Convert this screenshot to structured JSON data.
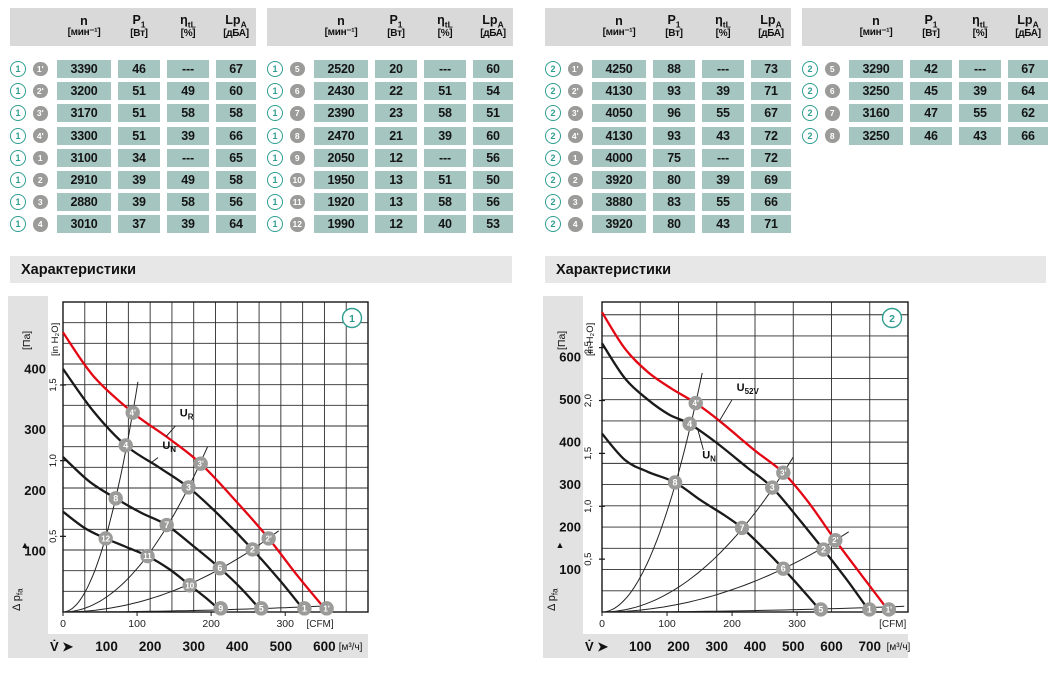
{
  "colors": {
    "cell_bg": "#a5c6c0",
    "header_band": "#d9d9d9",
    "section_band": "#e7e7e7",
    "chart_band": "#e2e2e2",
    "badge_gray": "#9b9b9a",
    "ref_teal": "#2f9e90",
    "curve_red": "#e30613",
    "curve_black": "#1a1a1a",
    "grid": "#2e2b2b"
  },
  "table_header": {
    "cols": [
      {
        "base": "n",
        "sub": "",
        "unit": "[мин⁻¹]"
      },
      {
        "base": "P",
        "sub": "1",
        "unit": "[Вт]"
      },
      {
        "base": "η",
        "sub": "tL",
        "unit": "[%]"
      },
      {
        "base": "Lp",
        "sub": "A",
        "unit": "[дБА]"
      }
    ]
  },
  "tables": [
    {
      "rows": [
        {
          "ref": "1",
          "pt": "1'",
          "values": [
            "3390",
            "46",
            "---",
            "67"
          ]
        },
        {
          "ref": "1",
          "pt": "2'",
          "values": [
            "3200",
            "51",
            "49",
            "60"
          ]
        },
        {
          "ref": "1",
          "pt": "3'",
          "values": [
            "3170",
            "51",
            "58",
            "58"
          ]
        },
        {
          "ref": "1",
          "pt": "4'",
          "values": [
            "3300",
            "51",
            "39",
            "66"
          ]
        },
        {
          "ref": "1",
          "pt": "1",
          "values": [
            "3100",
            "34",
            "---",
            "65"
          ]
        },
        {
          "ref": "1",
          "pt": "2",
          "values": [
            "2910",
            "39",
            "49",
            "58"
          ]
        },
        {
          "ref": "1",
          "pt": "3",
          "values": [
            "2880",
            "39",
            "58",
            "56"
          ]
        },
        {
          "ref": "1",
          "pt": "4",
          "values": [
            "3010",
            "37",
            "39",
            "64"
          ]
        }
      ]
    },
    {
      "rows": [
        {
          "ref": "1",
          "pt": "5",
          "values": [
            "2520",
            "20",
            "---",
            "60"
          ]
        },
        {
          "ref": "1",
          "pt": "6",
          "values": [
            "2430",
            "22",
            "51",
            "54"
          ]
        },
        {
          "ref": "1",
          "pt": "7",
          "values": [
            "2390",
            "23",
            "58",
            "51"
          ]
        },
        {
          "ref": "1",
          "pt": "8",
          "values": [
            "2470",
            "21",
            "39",
            "60"
          ]
        },
        {
          "ref": "1",
          "pt": "9",
          "values": [
            "2050",
            "12",
            "---",
            "56"
          ]
        },
        {
          "ref": "1",
          "pt": "10",
          "values": [
            "1950",
            "13",
            "51",
            "50"
          ]
        },
        {
          "ref": "1",
          "pt": "11",
          "values": [
            "1920",
            "13",
            "58",
            "56"
          ]
        },
        {
          "ref": "1",
          "pt": "12",
          "values": [
            "1990",
            "12",
            "40",
            "53"
          ]
        }
      ]
    },
    {
      "rows": [
        {
          "ref": "2",
          "pt": "1'",
          "values": [
            "4250",
            "88",
            "---",
            "73"
          ]
        },
        {
          "ref": "2",
          "pt": "2'",
          "values": [
            "4130",
            "93",
            "39",
            "71"
          ]
        },
        {
          "ref": "2",
          "pt": "3'",
          "values": [
            "4050",
            "96",
            "55",
            "67"
          ]
        },
        {
          "ref": "2",
          "pt": "4'",
          "values": [
            "4130",
            "93",
            "43",
            "72"
          ]
        },
        {
          "ref": "2",
          "pt": "1",
          "values": [
            "4000",
            "75",
            "---",
            "72"
          ]
        },
        {
          "ref": "2",
          "pt": "2",
          "values": [
            "3920",
            "80",
            "39",
            "69"
          ]
        },
        {
          "ref": "2",
          "pt": "3",
          "values": [
            "3880",
            "83",
            "55",
            "66"
          ]
        },
        {
          "ref": "2",
          "pt": "4",
          "values": [
            "3920",
            "80",
            "43",
            "71"
          ]
        }
      ]
    },
    {
      "rows": [
        {
          "ref": "2",
          "pt": "5",
          "values": [
            "3290",
            "42",
            "---",
            "67"
          ]
        },
        {
          "ref": "2",
          "pt": "6",
          "values": [
            "3250",
            "45",
            "39",
            "64"
          ]
        },
        {
          "ref": "2",
          "pt": "7",
          "values": [
            "3160",
            "47",
            "55",
            "62"
          ]
        },
        {
          "ref": "2",
          "pt": "8",
          "values": [
            "3250",
            "46",
            "43",
            "66"
          ]
        }
      ]
    }
  ],
  "section_headers": [
    "Характеристики",
    "Характеристики"
  ],
  "chart_data": [
    {
      "type": "line",
      "badge": "1",
      "xlabel": {
        "base": "V̇",
        "arrow": "➤"
      },
      "ylabel": {
        "base": "Δ p",
        "sub": "fa",
        "arrow": "▲"
      },
      "x_unit_primary": "[м³/ч]",
      "x_unit_secondary": "[CFM]",
      "y_unit_primary": "[Па]",
      "y_unit_secondary": "[in H₂O]",
      "xlim": [
        0,
        700
      ],
      "ylim": [
        0,
        510
      ],
      "xgrid": 50,
      "ygrid": 34,
      "m3h_ticks": [
        100,
        200,
        300,
        400,
        500,
        600
      ],
      "cfm_ticks": [
        {
          "v": 0,
          "label": "0"
        },
        {
          "v": 170,
          "label": "100"
        },
        {
          "v": 340,
          "label": "200"
        },
        {
          "v": 510,
          "label": "300"
        }
      ],
      "cfm_unit_x": 590,
      "m3h_unit_x": 660,
      "pa_ticks": [
        100,
        200,
        300,
        400
      ],
      "inh2o_ticks": [
        {
          "v": 124.5,
          "label": "0,5"
        },
        {
          "v": 249,
          "label": "1,0"
        },
        {
          "v": 373.5,
          "label": "1,5"
        }
      ],
      "curves": [
        {
          "name": "UR",
          "label": {
            "base": "U",
            "sub": "R"
          },
          "color": "red",
          "label_pos": [
            268,
            322
          ],
          "leader": [
            [
              258,
              306
            ],
            [
              237,
              289
            ]
          ],
          "points": [
            [
              0,
              460
            ],
            [
              70,
              388
            ],
            [
              160,
              328
            ],
            [
              240,
              287
            ],
            [
              316,
              244
            ],
            [
              400,
              180
            ],
            [
              472,
              121
            ],
            [
              540,
              58
            ],
            [
              605,
              2
            ]
          ]
        },
        {
          "name": "UN",
          "label": {
            "base": "U",
            "sub": "N"
          },
          "color": "black",
          "label_pos": [
            228,
            268
          ],
          "leader": [
            [
              218,
              254
            ],
            [
              201,
              245
            ]
          ],
          "points": [
            [
              0,
              400
            ],
            [
              70,
              330
            ],
            [
              144,
              274
            ],
            [
              220,
              238
            ],
            [
              288,
              205
            ],
            [
              360,
              158
            ],
            [
              435,
              103
            ],
            [
              500,
              50
            ],
            [
              554,
              2
            ]
          ]
        },
        {
          "name": "speed3",
          "color": "black",
          "points": [
            [
              0,
              255
            ],
            [
              60,
              215
            ],
            [
              121,
              187
            ],
            [
              180,
              163
            ],
            [
              238,
              143
            ],
            [
              300,
              108
            ],
            [
              360,
              72
            ],
            [
              410,
              38
            ],
            [
              455,
              2
            ]
          ]
        },
        {
          "name": "speed4",
          "color": "black",
          "points": [
            [
              0,
              165
            ],
            [
              50,
              138
            ],
            [
              98,
              121
            ],
            [
              145,
              107
            ],
            [
              194,
              92
            ],
            [
              245,
              70
            ],
            [
              291,
              44
            ],
            [
              330,
              22
            ],
            [
              362,
              2
            ]
          ]
        }
      ],
      "system_curves": [
        {
          "k": 0.0128,
          "x_end": 172
        },
        {
          "k": 0.00247,
          "x_end": 332
        },
        {
          "k": 0.000545,
          "x_end": 495
        },
        {
          "k": 2.75e-05,
          "x_end": 618
        }
      ],
      "markers": [
        {
          "label": "4'",
          "x": 160,
          "y": 328
        },
        {
          "label": "3'",
          "x": 316,
          "y": 244
        },
        {
          "label": "2'",
          "x": 472,
          "y": 121
        },
        {
          "label": "1'",
          "x": 605,
          "y": 6
        },
        {
          "label": "4",
          "x": 144,
          "y": 274
        },
        {
          "label": "3",
          "x": 288,
          "y": 205
        },
        {
          "label": "2",
          "x": 435,
          "y": 103
        },
        {
          "label": "1",
          "x": 554,
          "y": 6
        },
        {
          "label": "8",
          "x": 121,
          "y": 187
        },
        {
          "label": "7",
          "x": 238,
          "y": 143
        },
        {
          "label": "6",
          "x": 360,
          "y": 72
        },
        {
          "label": "5",
          "x": 455,
          "y": 6
        },
        {
          "label": "12",
          "x": 98,
          "y": 121
        },
        {
          "label": "11",
          "x": 194,
          "y": 92
        },
        {
          "label": "10",
          "x": 291,
          "y": 44
        },
        {
          "label": "9",
          "x": 362,
          "y": 6
        }
      ]
    },
    {
      "type": "line",
      "badge": "2",
      "xlabel": {
        "base": "V̇",
        "arrow": "➤"
      },
      "ylabel": {
        "base": "Δ p",
        "sub": "fa",
        "arrow": "▲"
      },
      "x_unit_primary": "[м³/ч]",
      "x_unit_secondary": "[CFM]",
      "y_unit_primary": "[Па]",
      "y_unit_secondary": "[in H₂O]",
      "xlim": [
        0,
        800
      ],
      "ylim": [
        0,
        730
      ],
      "xgrid": 100,
      "ygrid": 50,
      "m3h_ticks": [
        100,
        200,
        300,
        400,
        500,
        600,
        700
      ],
      "cfm_ticks": [
        {
          "v": 0,
          "label": "0"
        },
        {
          "v": 170,
          "label": "100"
        },
        {
          "v": 340,
          "label": "200"
        },
        {
          "v": 510,
          "label": "300"
        }
      ],
      "cfm_unit_x": 760,
      "m3h_unit_x": 775,
      "pa_ticks": [
        100,
        200,
        300,
        400,
        500,
        600
      ],
      "inh2o_ticks": [
        {
          "v": 124.5,
          "label": "0,5"
        },
        {
          "v": 249,
          "label": "1,0"
        },
        {
          "v": 373.5,
          "label": "1,5"
        },
        {
          "v": 498,
          "label": "2,0"
        },
        {
          "v": 622.5,
          "label": "2,5"
        }
      ],
      "curves": [
        {
          "name": "U52V",
          "label": {
            "base": "U",
            "sub": "52V"
          },
          "color": "red",
          "label_pos": [
            352,
            520
          ],
          "leader": [
            [
              340,
              500
            ],
            [
              307,
              450
            ]
          ],
          "points": [
            [
              0,
              706
            ],
            [
              60,
              620
            ],
            [
              120,
              565
            ],
            [
              180,
              527
            ],
            [
              245,
              492
            ],
            [
              310,
              448
            ],
            [
              400,
              380
            ],
            [
              474,
              328
            ],
            [
              540,
              258
            ],
            [
              610,
              169
            ],
            [
              680,
              85
            ],
            [
              750,
              2
            ]
          ]
        },
        {
          "name": "UN",
          "label": {
            "base": "U",
            "sub": "N"
          },
          "color": "black",
          "label_pos": [
            262,
            362
          ],
          "leader": [
            [
              265,
              382
            ],
            [
              251,
              428
            ]
          ],
          "points": [
            [
              0,
              633
            ],
            [
              60,
              550
            ],
            [
              120,
              500
            ],
            [
              175,
              465
            ],
            [
              229,
              443
            ],
            [
              300,
              398
            ],
            [
              380,
              340
            ],
            [
              445,
              293
            ],
            [
              520,
              213
            ],
            [
              579,
              147
            ],
            [
              640,
              76
            ],
            [
              699,
              2
            ]
          ]
        },
        {
          "name": "speed3",
          "color": "black",
          "points": [
            [
              0,
              420
            ],
            [
              60,
              358
            ],
            [
              120,
              330
            ],
            [
              191,
              305
            ],
            [
              260,
              262
            ],
            [
              320,
              228
            ],
            [
              366,
              198
            ],
            [
              420,
              152
            ],
            [
              474,
              102
            ],
            [
              530,
              46
            ],
            [
              572,
              2
            ]
          ]
        }
      ],
      "system_curves": [
        {
          "k": 0.0082,
          "x_end": 262
        },
        {
          "k": 0.00146,
          "x_end": 500
        },
        {
          "k": 0.000454,
          "x_end": 645
        },
        {
          "k": 2.14e-05,
          "x_end": 790
        }
      ],
      "markers": [
        {
          "label": "4'",
          "x": 245,
          "y": 492
        },
        {
          "label": "3'",
          "x": 474,
          "y": 328
        },
        {
          "label": "2'",
          "x": 610,
          "y": 169
        },
        {
          "label": "1'",
          "x": 750,
          "y": 6
        },
        {
          "label": "4",
          "x": 229,
          "y": 443
        },
        {
          "label": "3",
          "x": 445,
          "y": 293
        },
        {
          "label": "2",
          "x": 579,
          "y": 147
        },
        {
          "label": "1",
          "x": 699,
          "y": 6
        },
        {
          "label": "8",
          "x": 191,
          "y": 305
        },
        {
          "label": "7",
          "x": 366,
          "y": 198
        },
        {
          "label": "6",
          "x": 474,
          "y": 102
        },
        {
          "label": "5",
          "x": 572,
          "y": 6
        }
      ]
    }
  ]
}
